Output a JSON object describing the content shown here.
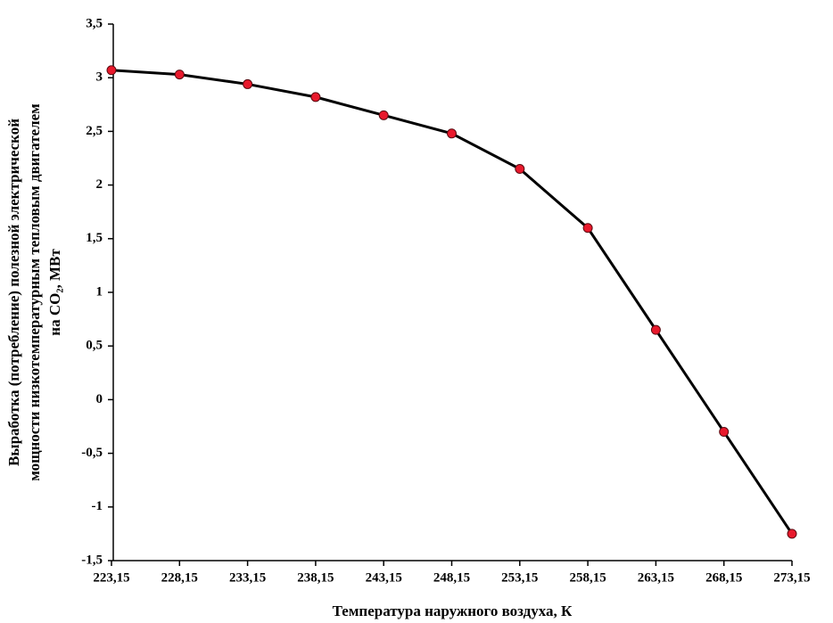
{
  "chart_data": {
    "type": "line",
    "xlabel": "Температура наружного воздуха, К",
    "ylabel": [
      "Выработка (потребление) полезной электрической",
      "мощности низкотемпературным тепловым двигателем",
      "на CO₂, МВт"
    ],
    "categories": [
      "223,15",
      "228,15",
      "233,15",
      "238,15",
      "243,15",
      "248,15",
      "253,15",
      "258,15",
      "263,15",
      "268,15",
      "273,15"
    ],
    "series": [
      {
        "color": "#000000",
        "marker_color": "#e8192c",
        "values": [
          3.07,
          3.03,
          2.94,
          2.82,
          2.65,
          2.48,
          2.15,
          1.6,
          0.65,
          -0.3,
          -1.25
        ]
      }
    ],
    "ylim": [
      -1.5,
      3.5
    ],
    "yticks": [
      {
        "value": -1.5,
        "label": "-1,5"
      },
      -1,
      {
        "value": -0.5,
        "label": "-0,5"
      },
      0,
      {
        "value": 0.5,
        "label": "0,5"
      },
      1,
      {
        "value": 1.5,
        "label": "1,5"
      },
      2,
      {
        "value": 2.5,
        "label": "2,5"
      },
      3,
      {
        "value": 3.5,
        "label": "3,5"
      }
    ],
    "grid": false
  }
}
